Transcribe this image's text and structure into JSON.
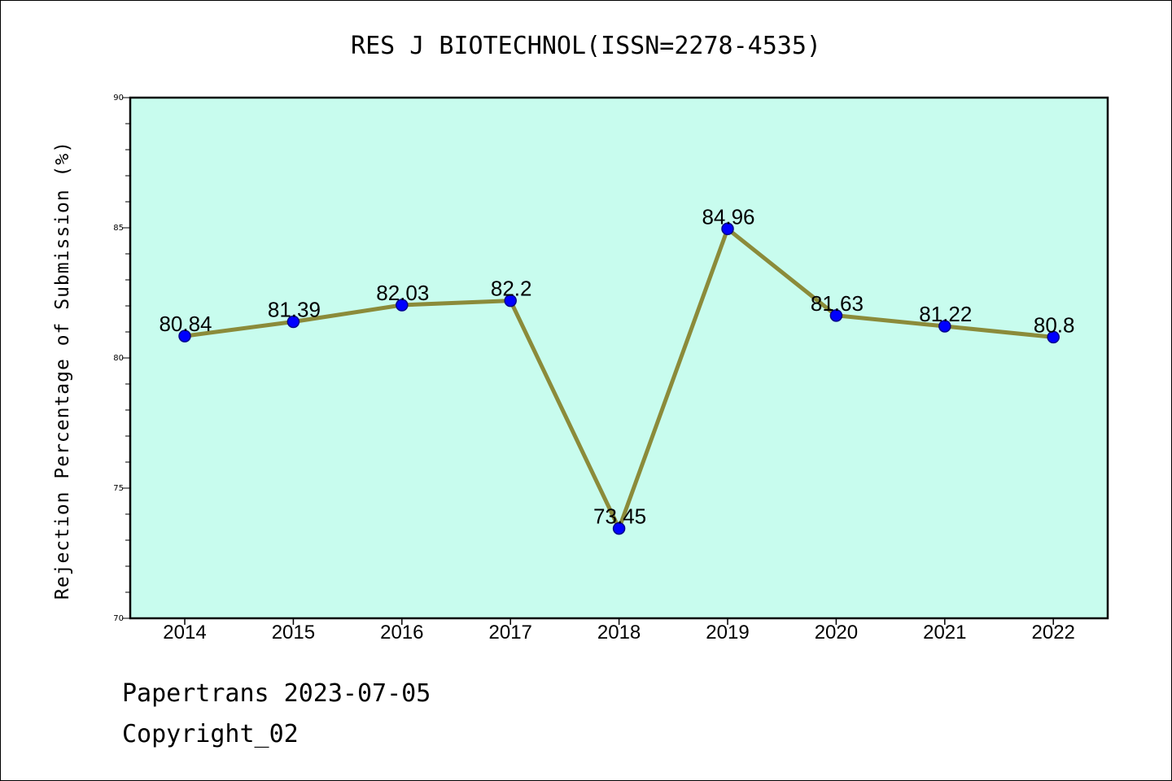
{
  "chart_data": {
    "type": "line",
    "title": "RES J BIOTECHNOL(ISSN=2278-4535)",
    "xlabel": "",
    "ylabel": "Rejection Percentage of Submission (%)",
    "categories": [
      "2014",
      "2015",
      "2016",
      "2017",
      "2018",
      "2019",
      "2020",
      "2021",
      "2022"
    ],
    "values": [
      80.84,
      81.39,
      82.03,
      82.2,
      73.45,
      84.96,
      81.63,
      81.22,
      80.8
    ],
    "data_labels": [
      "80.84",
      "81.39",
      "82.03",
      "82.2",
      "73.45",
      "84.96",
      "81.63",
      "81.22",
      "80.8"
    ],
    "ylim": [
      70,
      90
    ],
    "yticks": [
      70,
      75,
      80,
      85,
      90
    ],
    "grid": false,
    "legend": "none",
    "colors": {
      "plot_background": "#c8fcee",
      "line": "#8b8b3a",
      "marker": "#0000ff",
      "marker_edge": "#00008b"
    }
  },
  "footer": {
    "source": "Papertrans 2023-07-05",
    "copyright": "Copyright_02"
  }
}
